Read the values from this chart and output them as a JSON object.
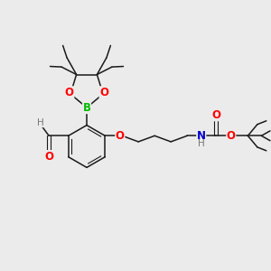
{
  "background_color": "#ebebeb",
  "bond_color": "#1a1a1a",
  "atom_colors": {
    "O": "#ff0000",
    "B": "#00bb00",
    "N": "#0000cc",
    "H": "#777777",
    "C": "#1a1a1a"
  },
  "fig_width": 3.0,
  "fig_height": 3.0,
  "dpi": 100
}
